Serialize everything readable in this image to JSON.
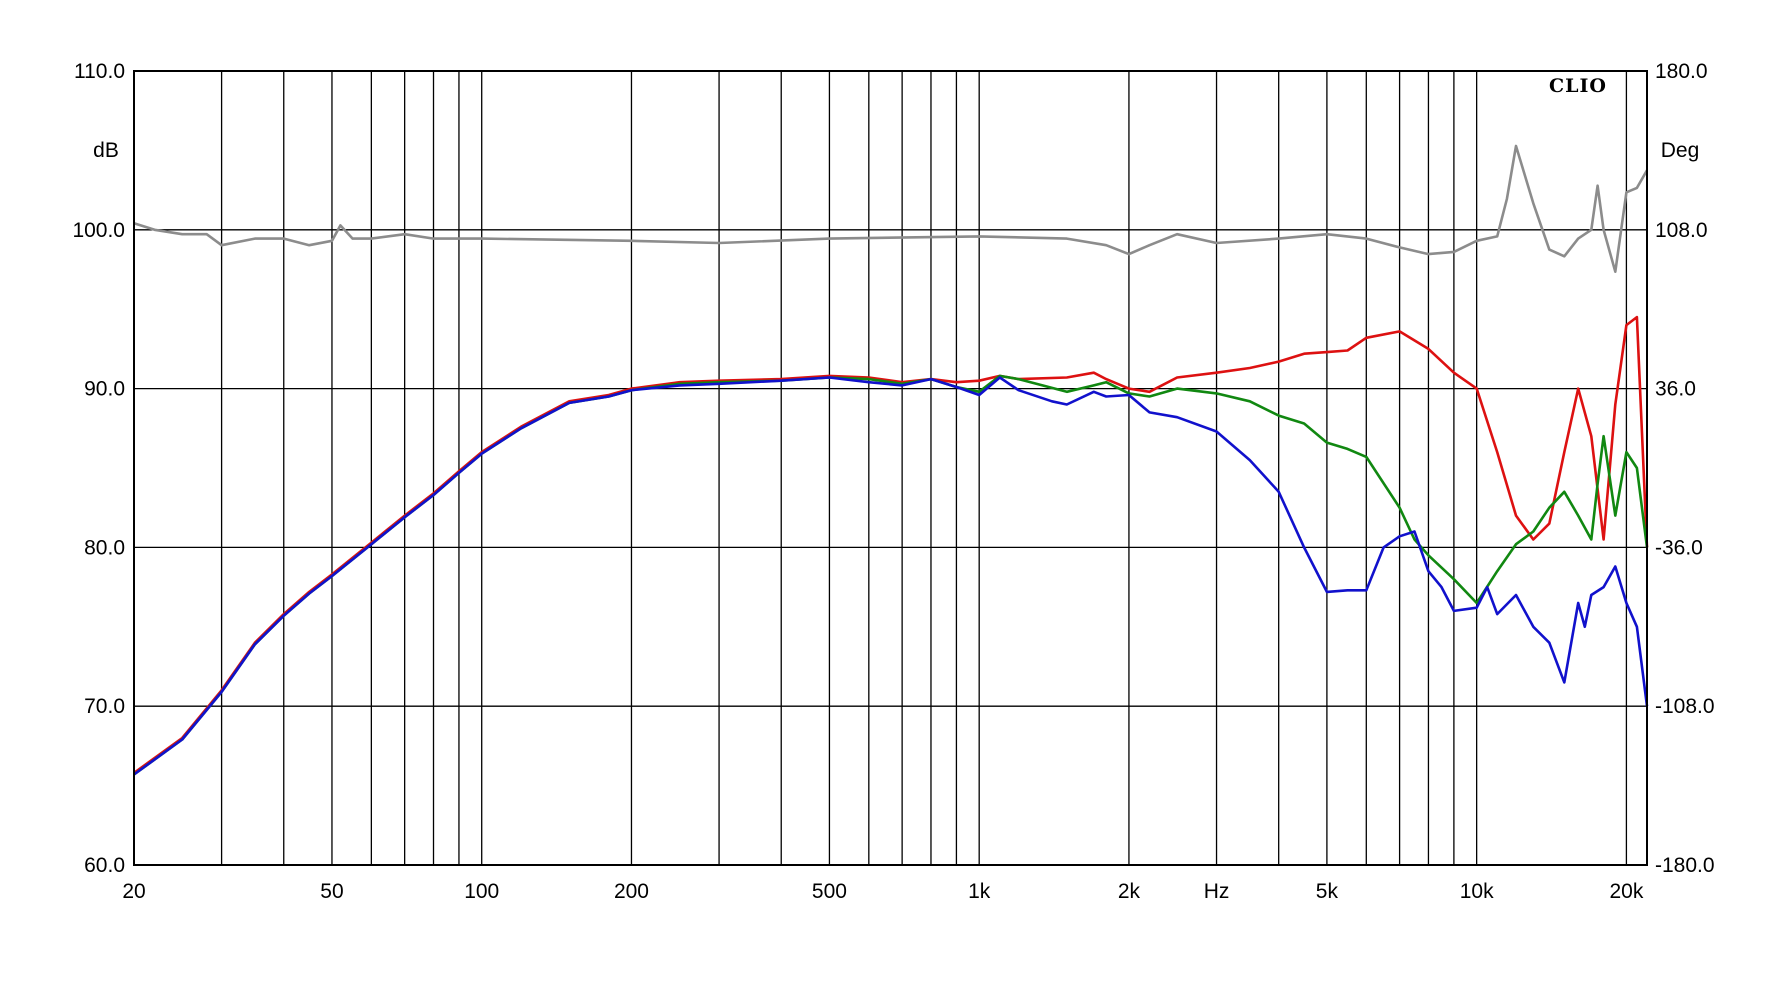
{
  "chart_data": {
    "type": "line",
    "brand": "CLIO",
    "xlabel": "Hz",
    "ylabel": "dB",
    "y2label": "Deg",
    "x_scale": "log",
    "xlim": [
      20,
      22000
    ],
    "ylim": [
      60,
      110
    ],
    "y2lim": [
      -180,
      180
    ],
    "grid": true,
    "x_ticks": [
      {
        "v": 20,
        "label": "20"
      },
      {
        "v": 50,
        "label": "50"
      },
      {
        "v": 100,
        "label": "100"
      },
      {
        "v": 200,
        "label": "200"
      },
      {
        "v": 500,
        "label": "500"
      },
      {
        "v": 1000,
        "label": "1k"
      },
      {
        "v": 2000,
        "label": "2k"
      },
      {
        "v": 5000,
        "label": "5k"
      },
      {
        "v": 10000,
        "label": "10k"
      },
      {
        "v": 20000,
        "label": "20k"
      }
    ],
    "y_ticks": [
      "60.0",
      "70.0",
      "80.0",
      "90.0",
      "100.0",
      "110.0"
    ],
    "y2_ticks": [
      "-180.0",
      "-108.0",
      "-36.0",
      "36.0",
      "108.0",
      "180.0"
    ],
    "colors": {
      "grid": "#000000",
      "phase": "#8c8c8c",
      "red": "#dd1111",
      "green": "#118811",
      "blue": "#1111cc"
    },
    "series": [
      {
        "color": "#8c8c8c",
        "axis": "right",
        "points": [
          [
            20,
            111
          ],
          [
            22,
            108
          ],
          [
            25,
            106
          ],
          [
            28,
            106
          ],
          [
            30,
            101
          ],
          [
            35,
            104
          ],
          [
            40,
            104
          ],
          [
            45,
            101
          ],
          [
            50,
            103
          ],
          [
            52,
            110
          ],
          [
            55,
            104
          ],
          [
            60,
            104
          ],
          [
            70,
            106
          ],
          [
            80,
            104
          ],
          [
            100,
            104
          ],
          [
            200,
            103
          ],
          [
            300,
            102
          ],
          [
            500,
            104
          ],
          [
            1000,
            105
          ],
          [
            1500,
            104
          ],
          [
            1800,
            101
          ],
          [
            2000,
            97
          ],
          [
            2200,
            101
          ],
          [
            2500,
            106
          ],
          [
            3000,
            102
          ],
          [
            4000,
            104
          ],
          [
            5000,
            106
          ],
          [
            6000,
            104
          ],
          [
            7000,
            100
          ],
          [
            8000,
            97
          ],
          [
            9000,
            98
          ],
          [
            10000,
            103
          ],
          [
            11000,
            105
          ],
          [
            11500,
            122
          ],
          [
            12000,
            146
          ],
          [
            13000,
            120
          ],
          [
            14000,
            99
          ],
          [
            15000,
            96
          ],
          [
            16000,
            104
          ],
          [
            17000,
            108
          ],
          [
            17500,
            128
          ],
          [
            18000,
            108
          ],
          [
            19000,
            89
          ],
          [
            20000,
            125
          ],
          [
            21000,
            127
          ],
          [
            22000,
            135
          ]
        ]
      },
      {
        "color": "#dd1111",
        "axis": "left",
        "points": [
          [
            20,
            65.8
          ],
          [
            25,
            68
          ],
          [
            30,
            71
          ],
          [
            35,
            74
          ],
          [
            40,
            75.8
          ],
          [
            45,
            77.2
          ],
          [
            50,
            78.3
          ],
          [
            60,
            80.3
          ],
          [
            70,
            82
          ],
          [
            80,
            83.4
          ],
          [
            90,
            84.8
          ],
          [
            100,
            86
          ],
          [
            120,
            87.6
          ],
          [
            150,
            89.2
          ],
          [
            180,
            89.6
          ],
          [
            200,
            90
          ],
          [
            250,
            90.4
          ],
          [
            300,
            90.5
          ],
          [
            400,
            90.6
          ],
          [
            500,
            90.8
          ],
          [
            600,
            90.7
          ],
          [
            700,
            90.4
          ],
          [
            800,
            90.6
          ],
          [
            900,
            90.4
          ],
          [
            1000,
            90.5
          ],
          [
            1100,
            90.8
          ],
          [
            1200,
            90.6
          ],
          [
            1500,
            90.7
          ],
          [
            1700,
            91
          ],
          [
            1800,
            90.6
          ],
          [
            2000,
            90
          ],
          [
            2200,
            89.8
          ],
          [
            2500,
            90.7
          ],
          [
            3000,
            91
          ],
          [
            3500,
            91.3
          ],
          [
            4000,
            91.7
          ],
          [
            4500,
            92.2
          ],
          [
            5000,
            92.3
          ],
          [
            5500,
            92.4
          ],
          [
            6000,
            93.2
          ],
          [
            7000,
            93.6
          ],
          [
            8000,
            92.5
          ],
          [
            9000,
            91
          ],
          [
            10000,
            90
          ],
          [
            11000,
            86
          ],
          [
            12000,
            82
          ],
          [
            13000,
            80.5
          ],
          [
            14000,
            81.5
          ],
          [
            15000,
            86
          ],
          [
            16000,
            90
          ],
          [
            17000,
            87
          ],
          [
            18000,
            80.5
          ],
          [
            19000,
            89
          ],
          [
            20000,
            94
          ],
          [
            21000,
            94.5
          ],
          [
            22000,
            80
          ]
        ]
      },
      {
        "color": "#118811",
        "axis": "left",
        "points": [
          [
            20,
            65.7
          ],
          [
            25,
            67.9
          ],
          [
            30,
            70.9
          ],
          [
            35,
            73.9
          ],
          [
            40,
            75.7
          ],
          [
            45,
            77.1
          ],
          [
            50,
            78.2
          ],
          [
            60,
            80.2
          ],
          [
            70,
            81.9
          ],
          [
            80,
            83.3
          ],
          [
            90,
            84.7
          ],
          [
            100,
            85.9
          ],
          [
            120,
            87.5
          ],
          [
            150,
            89.1
          ],
          [
            180,
            89.5
          ],
          [
            200,
            89.9
          ],
          [
            250,
            90.3
          ],
          [
            300,
            90.4
          ],
          [
            400,
            90.5
          ],
          [
            500,
            90.7
          ],
          [
            600,
            90.6
          ],
          [
            700,
            90.3
          ],
          [
            800,
            90.6
          ],
          [
            900,
            90.1
          ],
          [
            1000,
            89.8
          ],
          [
            1100,
            90.8
          ],
          [
            1200,
            90.6
          ],
          [
            1500,
            89.8
          ],
          [
            1700,
            90.2
          ],
          [
            1800,
            90.4
          ],
          [
            2000,
            89.7
          ],
          [
            2200,
            89.5
          ],
          [
            2500,
            90
          ],
          [
            3000,
            89.7
          ],
          [
            3500,
            89.2
          ],
          [
            4000,
            88.3
          ],
          [
            4500,
            87.8
          ],
          [
            5000,
            86.6
          ],
          [
            5500,
            86.2
          ],
          [
            6000,
            85.7
          ],
          [
            7000,
            82.5
          ],
          [
            7500,
            80.5
          ],
          [
            8000,
            79.5
          ],
          [
            9000,
            78
          ],
          [
            10000,
            76.5
          ],
          [
            11000,
            78.5
          ],
          [
            12000,
            80.2
          ],
          [
            13000,
            81
          ],
          [
            14000,
            82.5
          ],
          [
            15000,
            83.5
          ],
          [
            16000,
            82
          ],
          [
            17000,
            80.5
          ],
          [
            17500,
            84
          ],
          [
            18000,
            87
          ],
          [
            19000,
            82
          ],
          [
            20000,
            86
          ],
          [
            21000,
            85
          ],
          [
            22000,
            80
          ]
        ]
      },
      {
        "color": "#1111cc",
        "axis": "left",
        "points": [
          [
            20,
            65.7
          ],
          [
            25,
            67.9
          ],
          [
            30,
            70.9
          ],
          [
            35,
            73.9
          ],
          [
            40,
            75.7
          ],
          [
            45,
            77.1
          ],
          [
            50,
            78.2
          ],
          [
            60,
            80.2
          ],
          [
            70,
            81.9
          ],
          [
            80,
            83.3
          ],
          [
            90,
            84.7
          ],
          [
            100,
            85.9
          ],
          [
            120,
            87.5
          ],
          [
            150,
            89.1
          ],
          [
            180,
            89.5
          ],
          [
            200,
            89.9
          ],
          [
            250,
            90.2
          ],
          [
            300,
            90.3
          ],
          [
            400,
            90.5
          ],
          [
            500,
            90.7
          ],
          [
            600,
            90.4
          ],
          [
            700,
            90.2
          ],
          [
            800,
            90.6
          ],
          [
            900,
            90.1
          ],
          [
            1000,
            89.6
          ],
          [
            1100,
            90.7
          ],
          [
            1200,
            89.9
          ],
          [
            1400,
            89.2
          ],
          [
            1500,
            89
          ],
          [
            1700,
            89.8
          ],
          [
            1800,
            89.5
          ],
          [
            2000,
            89.6
          ],
          [
            2200,
            88.5
          ],
          [
            2500,
            88.2
          ],
          [
            3000,
            87.3
          ],
          [
            3500,
            85.5
          ],
          [
            4000,
            83.5
          ],
          [
            4500,
            80
          ],
          [
            5000,
            77.2
          ],
          [
            5500,
            77.3
          ],
          [
            6000,
            77.3
          ],
          [
            6500,
            80
          ],
          [
            7000,
            80.7
          ],
          [
            7500,
            81
          ],
          [
            8000,
            78.5
          ],
          [
            8500,
            77.5
          ],
          [
            9000,
            76
          ],
          [
            10000,
            76.2
          ],
          [
            10500,
            77.5
          ],
          [
            11000,
            75.8
          ],
          [
            12000,
            77
          ],
          [
            13000,
            75
          ],
          [
            14000,
            74
          ],
          [
            15000,
            71.5
          ],
          [
            16000,
            76.5
          ],
          [
            16500,
            75
          ],
          [
            17000,
            77
          ],
          [
            18000,
            77.5
          ],
          [
            19000,
            78.8
          ],
          [
            20000,
            76.5
          ],
          [
            21000,
            75
          ],
          [
            22000,
            70
          ]
        ]
      }
    ]
  }
}
